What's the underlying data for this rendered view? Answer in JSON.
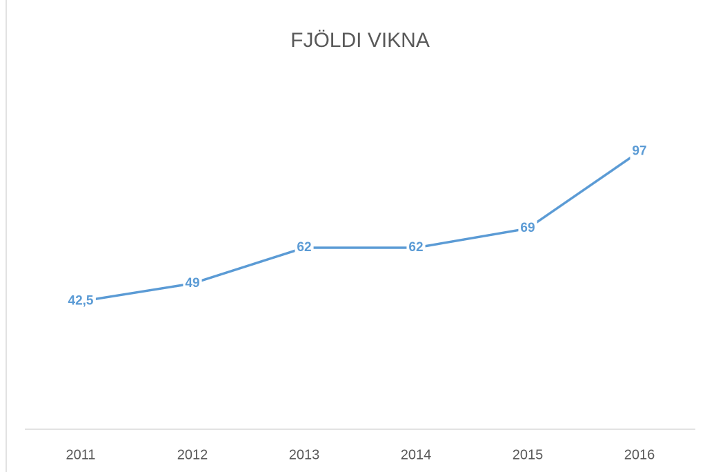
{
  "chart_data": {
    "type": "line",
    "title": "FJÖLDI VIKNA",
    "categories": [
      "2011",
      "2012",
      "2013",
      "2014",
      "2015",
      "2016"
    ],
    "series": [
      {
        "name": "Fjöldi vikna",
        "color": "#5b9bd5",
        "values": [
          42.5,
          49,
          62,
          62,
          69,
          97
        ],
        "value_labels": [
          "42,5",
          "49",
          "62",
          "62",
          "69",
          "97"
        ]
      }
    ],
    "ylim": [
      0,
      120
    ]
  }
}
